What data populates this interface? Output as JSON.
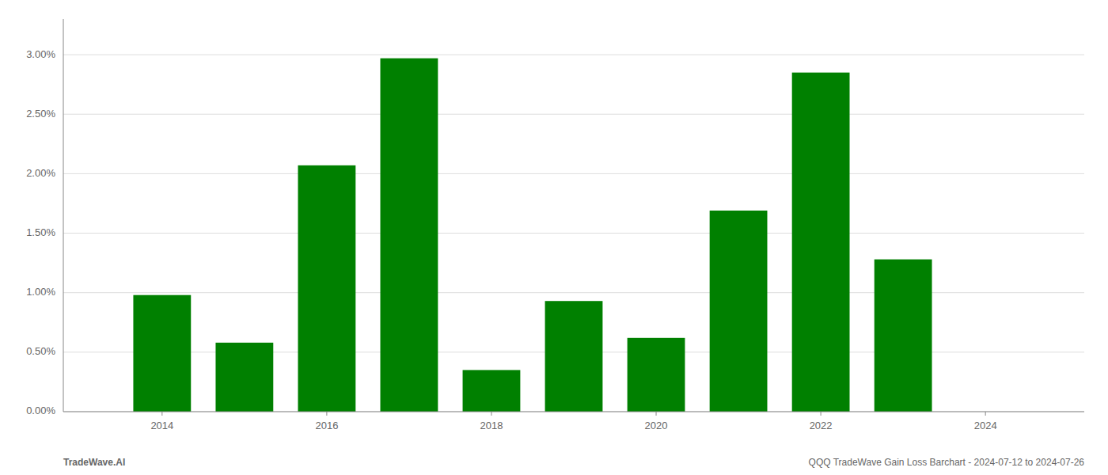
{
  "chart_data": {
    "type": "bar",
    "x": [
      2014,
      2015,
      2016,
      2017,
      2018,
      2019,
      2020,
      2021,
      2022,
      2023,
      2024
    ],
    "values": [
      0.0098,
      0.0058,
      0.0207,
      0.0297,
      0.0035,
      0.0093,
      0.0062,
      0.0169,
      0.0285,
      0.0128,
      0.0
    ],
    "color": "#008000",
    "xlim": [
      2012.8,
      2025.2
    ],
    "xticks": [
      2014,
      2016,
      2018,
      2020,
      2022,
      2024
    ],
    "ylim": [
      0,
      0.033
    ],
    "yticks": [
      {
        "value": 0.0,
        "label": "0.00%"
      },
      {
        "value": 0.005,
        "label": "0.50%"
      },
      {
        "value": 0.01,
        "label": "1.00%"
      },
      {
        "value": 0.015,
        "label": "1.50%"
      },
      {
        "value": 0.02,
        "label": "2.00%"
      },
      {
        "value": 0.025,
        "label": "2.50%"
      },
      {
        "value": 0.03,
        "label": "3.00%"
      }
    ],
    "grid": true,
    "annotations": [
      "TradeWave.AI",
      "QQQ TradeWave Gain Loss Barchart - 2024-07-12 to 2024-07-26"
    ]
  }
}
